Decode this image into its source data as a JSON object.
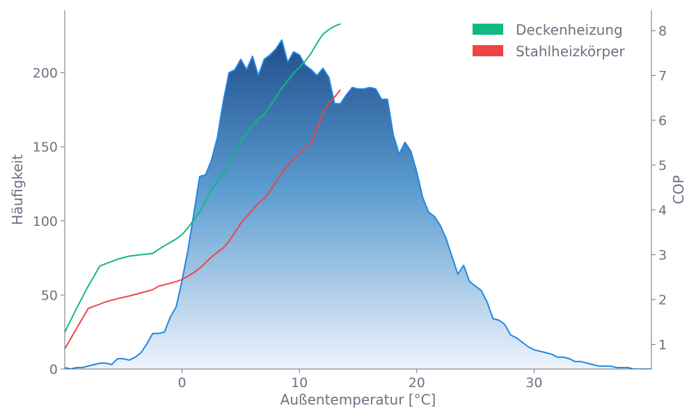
{
  "chart_data": {
    "type": "area",
    "xlabel": "Außentemperatur [°C]",
    "ylabel": "Häufigkeit",
    "y2label": "COP",
    "xlim": [
      -10,
      40
    ],
    "ylim": [
      0,
      242
    ],
    "y2lim": [
      0.45,
      8.45
    ],
    "xticks": [
      0,
      10,
      20,
      30
    ],
    "yticks": [
      0,
      50,
      100,
      150,
      200
    ],
    "y2ticks": [
      1,
      2,
      3,
      4,
      5,
      6,
      7,
      8
    ],
    "grid": false,
    "legend_position": "top-right",
    "colors": {
      "histogram_line": "#1e88e5",
      "histogram_fill_top": "#1f4e8c",
      "histogram_fill_bottom": "#eef4fc",
      "Deckenheizung": "#10b981",
      "Stahlheizkörper": "#ef4444"
    },
    "histogram": {
      "x": [
        -10,
        -9.5,
        -9,
        -8.5,
        -8,
        -7.5,
        -7,
        -6.5,
        -6,
        -5.5,
        -5,
        -4.5,
        -4,
        -3.5,
        -3,
        -2.5,
        -2,
        -1.5,
        -1,
        -0.5,
        0,
        0.5,
        1,
        1.5,
        2,
        2.5,
        3,
        3.5,
        4,
        4.5,
        5,
        5.5,
        6,
        6.5,
        7,
        7.5,
        8,
        8.5,
        9,
        9.5,
        10,
        10.5,
        11,
        11.5,
        12,
        12.5,
        13,
        13.5,
        14,
        14.5,
        15,
        15.5,
        16,
        16.5,
        17,
        17.5,
        18,
        18.5,
        19,
        19.5,
        20,
        20.5,
        21,
        21.5,
        22,
        22.5,
        23,
        23.5,
        24,
        24.5,
        25,
        25.5,
        26,
        26.5,
        27,
        27.5,
        28,
        28.5,
        29,
        29.5,
        30,
        30.5,
        31,
        31.5,
        32,
        32.5,
        33,
        33.5,
        34,
        34.5,
        35,
        35.5,
        36,
        36.5,
        37,
        37.5,
        38,
        38.5,
        39,
        39.5,
        40
      ],
      "values": [
        1,
        0,
        1,
        1,
        2,
        3,
        4,
        4,
        3,
        7,
        7,
        6,
        8,
        11,
        17,
        24,
        24,
        25,
        35,
        42,
        60,
        80,
        105,
        130,
        131,
        141,
        156,
        180,
        200,
        202,
        209,
        202,
        211,
        198,
        209,
        212,
        216,
        222,
        207,
        214,
        212,
        205,
        202,
        198,
        203,
        197,
        179,
        179,
        185,
        190,
        189,
        189,
        190,
        189,
        182,
        182,
        158,
        145,
        153,
        147,
        133,
        116,
        106,
        103,
        97,
        88,
        76,
        64,
        70,
        59,
        56,
        53,
        45,
        34,
        33,
        30,
        23,
        21,
        18,
        15,
        13,
        12,
        11,
        10,
        8,
        8,
        7,
        5,
        5,
        4,
        3,
        2,
        2,
        2,
        1,
        1,
        1,
        0,
        0,
        0,
        0
      ]
    },
    "series": [
      {
        "name": "Deckenheizung",
        "x": [
          -10,
          -9,
          -8,
          -7,
          -6.5,
          -5.5,
          -4.5,
          -3.5,
          -2.5,
          -2,
          -1.5,
          -0.5,
          0,
          0.5,
          1,
          1.5,
          2,
          2.5,
          3,
          3.5,
          4,
          4.5,
          5,
          5.5,
          6,
          6.5,
          7,
          7.5,
          8,
          8.5,
          9,
          9.5,
          10,
          10.5,
          11,
          11.5,
          12,
          12.5,
          13,
          13.5
        ],
        "values": [
          1.27,
          1.8,
          2.3,
          2.75,
          2.8,
          2.9,
          2.97,
          3.0,
          3.03,
          3.12,
          3.2,
          3.35,
          3.45,
          3.6,
          3.78,
          3.95,
          4.2,
          4.45,
          4.62,
          4.8,
          5.05,
          5.3,
          5.5,
          5.7,
          5.88,
          6.03,
          6.12,
          6.32,
          6.52,
          6.72,
          6.88,
          7.05,
          7.18,
          7.32,
          7.5,
          7.72,
          7.92,
          8.02,
          8.1,
          8.15
        ]
      },
      {
        "name": "Stahlheizkörper",
        "x": [
          -10,
          -9,
          -8,
          -7,
          -6.5,
          -5.5,
          -4.5,
          -3.5,
          -2.5,
          -2,
          -1.5,
          -0.5,
          0,
          0.5,
          1,
          1.5,
          2,
          2.5,
          3,
          3.5,
          4,
          4.5,
          5,
          5.5,
          6,
          6.5,
          7,
          7.5,
          8,
          8.5,
          9,
          9.5,
          10,
          10.5,
          11,
          11.5,
          12,
          12.5,
          13,
          13.5
        ],
        "values": [
          0.9,
          1.35,
          1.8,
          1.9,
          1.95,
          2.02,
          2.08,
          2.15,
          2.22,
          2.3,
          2.33,
          2.4,
          2.45,
          2.52,
          2.6,
          2.7,
          2.82,
          2.95,
          3.05,
          3.15,
          3.3,
          3.5,
          3.7,
          3.85,
          4.0,
          4.15,
          4.25,
          4.42,
          4.62,
          4.82,
          5.0,
          5.12,
          5.25,
          5.38,
          5.5,
          5.8,
          6.15,
          6.38,
          6.52,
          6.68
        ]
      }
    ]
  }
}
